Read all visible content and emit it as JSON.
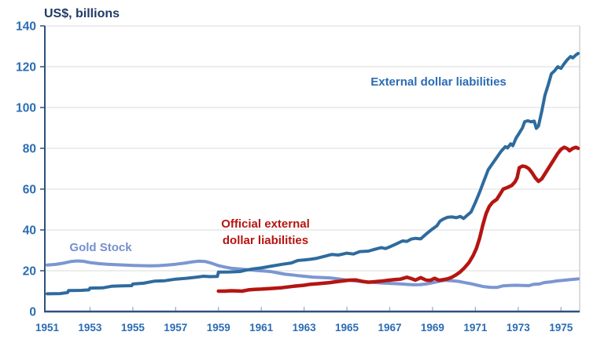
{
  "title": "US$, billions",
  "colors": {
    "title": "#1F3A68",
    "tick_label": "#2B6CB4",
    "axis": "#2F5080",
    "grid": "#DBDBDB",
    "border_right": "#C3C3C3",
    "xtick_mark": "#9AA8BD",
    "line_external": "#2E6B9E",
    "line_official": "#B51511",
    "line_gold": "#7B96D2",
    "label_external": "#2B6CB4",
    "label_official": "#B51511",
    "label_gold": "#7490CF"
  },
  "annotations": {
    "external": "External dollar liabilities",
    "official": "Official external\ndollar liabilities",
    "gold": "Gold Stock"
  },
  "chart_data": {
    "type": "line",
    "title": "US$, billions",
    "xlabel": "",
    "ylabel": "US$, billions",
    "grid": true,
    "legend_position": "inline-annotations",
    "x_axis": {
      "range": [
        1951,
        1975.8
      ],
      "ticks": [
        1951,
        1953,
        1955,
        1957,
        1959,
        1961,
        1963,
        1965,
        1967,
        1969,
        1971,
        1973,
        1975
      ]
    },
    "y_axis": {
      "range": [
        0,
        140
      ],
      "ticks": [
        0,
        20,
        40,
        60,
        80,
        100,
        120,
        140
      ]
    },
    "series": [
      {
        "id": "gold",
        "name": "Gold Stock",
        "color": "#7B96D2",
        "stroke_width": 4,
        "points": [
          [
            1951.0,
            22.8
          ],
          [
            1951.4,
            23.1
          ],
          [
            1951.8,
            23.8
          ],
          [
            1952.1,
            24.5
          ],
          [
            1952.4,
            24.8
          ],
          [
            1952.7,
            24.6
          ],
          [
            1953.0,
            24.0
          ],
          [
            1953.4,
            23.5
          ],
          [
            1953.8,
            23.2
          ],
          [
            1954.2,
            23.0
          ],
          [
            1954.6,
            22.8
          ],
          [
            1955.0,
            22.6
          ],
          [
            1955.4,
            22.5
          ],
          [
            1955.8,
            22.4
          ],
          [
            1956.2,
            22.5
          ],
          [
            1956.6,
            22.8
          ],
          [
            1957.0,
            23.2
          ],
          [
            1957.4,
            23.7
          ],
          [
            1957.8,
            24.4
          ],
          [
            1958.1,
            24.7
          ],
          [
            1958.4,
            24.5
          ],
          [
            1958.7,
            23.6
          ],
          [
            1959.0,
            22.5
          ],
          [
            1959.3,
            21.8
          ],
          [
            1959.6,
            21.2
          ],
          [
            1960.0,
            20.9
          ],
          [
            1960.4,
            20.5
          ],
          [
            1960.8,
            20.1
          ],
          [
            1961.2,
            19.8
          ],
          [
            1961.5,
            19.5
          ],
          [
            1961.8,
            18.9
          ],
          [
            1962.1,
            18.3
          ],
          [
            1962.4,
            18.0
          ],
          [
            1962.7,
            17.6
          ],
          [
            1963.0,
            17.3
          ],
          [
            1963.4,
            16.9
          ],
          [
            1963.8,
            16.7
          ],
          [
            1964.2,
            16.5
          ],
          [
            1964.6,
            16.0
          ],
          [
            1965.0,
            15.4
          ],
          [
            1965.4,
            15.0
          ],
          [
            1965.8,
            14.6
          ],
          [
            1966.2,
            14.3
          ],
          [
            1966.6,
            14.0
          ],
          [
            1967.0,
            13.8
          ],
          [
            1967.4,
            13.6
          ],
          [
            1967.8,
            13.3
          ],
          [
            1968.1,
            13.1
          ],
          [
            1968.4,
            13.2
          ],
          [
            1968.7,
            13.5
          ],
          [
            1969.0,
            14.1
          ],
          [
            1969.3,
            14.8
          ],
          [
            1969.6,
            15.3
          ],
          [
            1969.9,
            15.1
          ],
          [
            1970.2,
            14.8
          ],
          [
            1970.5,
            14.2
          ],
          [
            1970.8,
            13.6
          ],
          [
            1971.1,
            12.9
          ],
          [
            1971.4,
            12.2
          ],
          [
            1971.7,
            11.9
          ],
          [
            1972.0,
            11.8
          ],
          [
            1972.3,
            12.6
          ],
          [
            1972.6,
            12.8
          ],
          [
            1972.9,
            12.9
          ],
          [
            1973.2,
            12.8
          ],
          [
            1973.5,
            12.7
          ],
          [
            1973.7,
            13.3
          ],
          [
            1974.0,
            13.5
          ],
          [
            1974.2,
            14.2
          ],
          [
            1974.5,
            14.5
          ],
          [
            1974.8,
            15.0
          ],
          [
            1975.1,
            15.3
          ],
          [
            1975.4,
            15.6
          ],
          [
            1975.6,
            15.8
          ],
          [
            1975.8,
            16.0
          ]
        ]
      },
      {
        "id": "external",
        "name": "External dollar liabilities",
        "color": "#2E6B9E",
        "stroke_width": 4,
        "points": [
          [
            1951.0,
            8.7
          ],
          [
            1951.6,
            8.8
          ],
          [
            1951.95,
            9.3
          ],
          [
            1952.0,
            10.3
          ],
          [
            1952.6,
            10.4
          ],
          [
            1952.95,
            10.6
          ],
          [
            1953.0,
            11.5
          ],
          [
            1953.6,
            11.6
          ],
          [
            1954.0,
            12.4
          ],
          [
            1954.5,
            12.6
          ],
          [
            1954.95,
            12.7
          ],
          [
            1955.0,
            13.5
          ],
          [
            1955.5,
            13.9
          ],
          [
            1956.0,
            14.9
          ],
          [
            1956.5,
            15.1
          ],
          [
            1957.0,
            15.9
          ],
          [
            1957.5,
            16.3
          ],
          [
            1958.0,
            16.9
          ],
          [
            1958.3,
            17.3
          ],
          [
            1958.6,
            17.1
          ],
          [
            1958.95,
            17.2
          ],
          [
            1959.0,
            19.3
          ],
          [
            1959.5,
            19.4
          ],
          [
            1960.0,
            19.6
          ],
          [
            1960.3,
            20.3
          ],
          [
            1960.6,
            20.9
          ],
          [
            1961.0,
            21.4
          ],
          [
            1961.5,
            22.3
          ],
          [
            1962.0,
            23.2
          ],
          [
            1962.4,
            23.8
          ],
          [
            1962.7,
            25.0
          ],
          [
            1963.0,
            25.3
          ],
          [
            1963.3,
            25.6
          ],
          [
            1963.6,
            26.1
          ],
          [
            1964.0,
            27.2
          ],
          [
            1964.3,
            28.0
          ],
          [
            1964.6,
            27.7
          ],
          [
            1965.0,
            28.6
          ],
          [
            1965.3,
            28.2
          ],
          [
            1965.6,
            29.4
          ],
          [
            1966.0,
            29.6
          ],
          [
            1966.3,
            30.5
          ],
          [
            1966.6,
            31.3
          ],
          [
            1966.8,
            30.9
          ],
          [
            1967.0,
            31.7
          ],
          [
            1967.3,
            33.1
          ],
          [
            1967.6,
            34.6
          ],
          [
            1967.8,
            34.4
          ],
          [
            1968.0,
            35.5
          ],
          [
            1968.2,
            35.9
          ],
          [
            1968.45,
            35.6
          ],
          [
            1968.7,
            38.0
          ],
          [
            1969.0,
            40.5
          ],
          [
            1969.2,
            42.0
          ],
          [
            1969.35,
            44.3
          ],
          [
            1969.5,
            45.3
          ],
          [
            1969.7,
            46.2
          ],
          [
            1969.9,
            46.4
          ],
          [
            1970.1,
            46.0
          ],
          [
            1970.3,
            46.6
          ],
          [
            1970.45,
            45.6
          ],
          [
            1970.6,
            47.0
          ],
          [
            1970.8,
            48.8
          ],
          [
            1971.0,
            53.5
          ],
          [
            1971.2,
            58.5
          ],
          [
            1971.4,
            64.0
          ],
          [
            1971.6,
            69.5
          ],
          [
            1971.8,
            72.5
          ],
          [
            1972.0,
            75.5
          ],
          [
            1972.2,
            78.5
          ],
          [
            1972.4,
            80.8
          ],
          [
            1972.5,
            80.2
          ],
          [
            1972.65,
            82.2
          ],
          [
            1972.75,
            81.3
          ],
          [
            1972.9,
            85.0
          ],
          [
            1973.05,
            87.5
          ],
          [
            1973.2,
            90.0
          ],
          [
            1973.3,
            93.0
          ],
          [
            1973.45,
            93.5
          ],
          [
            1973.6,
            93.0
          ],
          [
            1973.75,
            93.3
          ],
          [
            1973.85,
            89.8
          ],
          [
            1973.95,
            91.0
          ],
          [
            1974.1,
            98.0
          ],
          [
            1974.25,
            106.0
          ],
          [
            1974.4,
            111.0
          ],
          [
            1974.55,
            116.5
          ],
          [
            1974.7,
            118.0
          ],
          [
            1974.85,
            120.0
          ],
          [
            1975.0,
            119.2
          ],
          [
            1975.15,
            121.5
          ],
          [
            1975.3,
            123.5
          ],
          [
            1975.45,
            125.0
          ],
          [
            1975.55,
            124.3
          ],
          [
            1975.7,
            125.8
          ],
          [
            1975.8,
            126.5
          ]
        ]
      },
      {
        "id": "official",
        "name": "Official external dollar liabilities",
        "color": "#B51511",
        "stroke_width": 4.5,
        "points": [
          [
            1959.0,
            10.0
          ],
          [
            1959.3,
            10.0
          ],
          [
            1959.6,
            10.2
          ],
          [
            1959.9,
            10.1
          ],
          [
            1960.1,
            10.0
          ],
          [
            1960.4,
            10.6
          ],
          [
            1960.7,
            10.9
          ],
          [
            1961.0,
            11.0
          ],
          [
            1961.3,
            11.2
          ],
          [
            1961.6,
            11.4
          ],
          [
            1961.9,
            11.6
          ],
          [
            1962.2,
            12.0
          ],
          [
            1962.5,
            12.4
          ],
          [
            1962.8,
            12.7
          ],
          [
            1963.0,
            12.9
          ],
          [
            1963.3,
            13.4
          ],
          [
            1963.6,
            13.6
          ],
          [
            1963.9,
            13.9
          ],
          [
            1964.2,
            14.2
          ],
          [
            1964.5,
            14.6
          ],
          [
            1964.8,
            15.0
          ],
          [
            1965.1,
            15.4
          ],
          [
            1965.4,
            15.5
          ],
          [
            1965.7,
            14.8
          ],
          [
            1966.0,
            14.4
          ],
          [
            1966.3,
            14.6
          ],
          [
            1966.6,
            14.9
          ],
          [
            1966.9,
            15.3
          ],
          [
            1967.2,
            15.6
          ],
          [
            1967.5,
            15.9
          ],
          [
            1967.8,
            16.8
          ],
          [
            1968.0,
            16.2
          ],
          [
            1968.2,
            15.4
          ],
          [
            1968.45,
            16.6
          ],
          [
            1968.7,
            15.4
          ],
          [
            1968.9,
            15.3
          ],
          [
            1969.1,
            16.3
          ],
          [
            1969.3,
            15.3
          ],
          [
            1969.5,
            15.6
          ],
          [
            1969.7,
            16.0
          ],
          [
            1969.9,
            16.8
          ],
          [
            1970.1,
            18.0
          ],
          [
            1970.3,
            19.5
          ],
          [
            1970.5,
            21.5
          ],
          [
            1970.7,
            24.0
          ],
          [
            1970.9,
            27.5
          ],
          [
            1971.05,
            31.0
          ],
          [
            1971.2,
            36.0
          ],
          [
            1971.35,
            42.5
          ],
          [
            1971.5,
            48.0
          ],
          [
            1971.65,
            51.5
          ],
          [
            1971.8,
            53.5
          ],
          [
            1972.0,
            55.0
          ],
          [
            1972.15,
            57.5
          ],
          [
            1972.3,
            60.0
          ],
          [
            1972.5,
            60.8
          ],
          [
            1972.7,
            61.8
          ],
          [
            1972.85,
            63.5
          ],
          [
            1972.95,
            65.5
          ],
          [
            1973.05,
            70.5
          ],
          [
            1973.2,
            71.3
          ],
          [
            1973.35,
            71.0
          ],
          [
            1973.5,
            70.0
          ],
          [
            1973.65,
            68.0
          ],
          [
            1973.8,
            65.5
          ],
          [
            1973.95,
            63.8
          ],
          [
            1974.1,
            65.0
          ],
          [
            1974.25,
            67.5
          ],
          [
            1974.4,
            70.0
          ],
          [
            1974.55,
            72.5
          ],
          [
            1974.7,
            75.0
          ],
          [
            1974.85,
            77.5
          ],
          [
            1975.0,
            79.5
          ],
          [
            1975.15,
            80.5
          ],
          [
            1975.3,
            79.8
          ],
          [
            1975.4,
            78.8
          ],
          [
            1975.55,
            80.0
          ],
          [
            1975.7,
            80.5
          ],
          [
            1975.8,
            80.0
          ]
        ]
      }
    ]
  }
}
